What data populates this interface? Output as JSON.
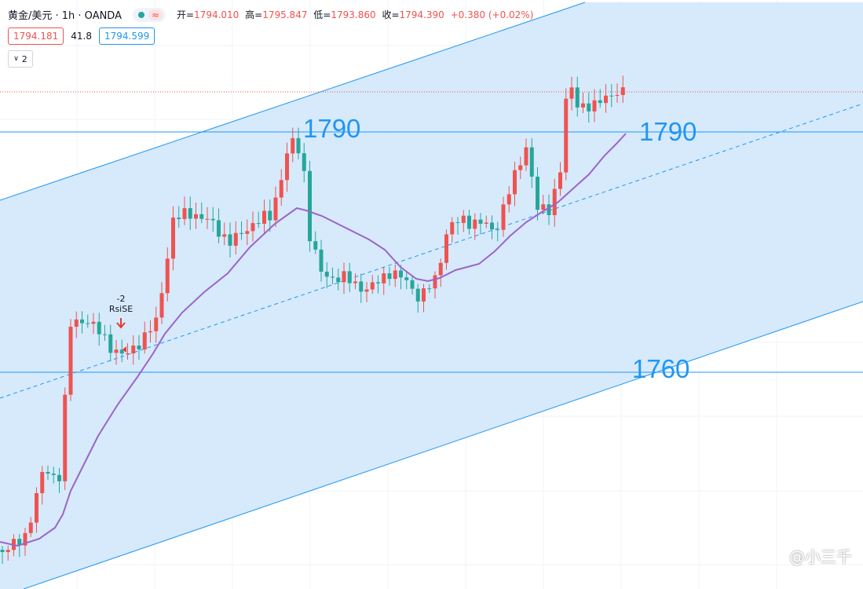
{
  "header": {
    "symbol": "黄金/美元 · 1h · OANDA",
    "status_dot_color": "#26a69a",
    "replay_glyph": "≈",
    "open_label": "开=",
    "open": "1794.010",
    "high_label": "高=",
    "high": "1795.847",
    "low_label": "低=",
    "low": "1793.860",
    "close_label": "收=",
    "close": "1794.390",
    "change": "+0.380 (+0.02%)"
  },
  "quote": {
    "sell": "1794.181",
    "spread": "41.8",
    "buy": "1794.599"
  },
  "indicators_collapse": {
    "icon": "chevron-down-icon",
    "count": "2"
  },
  "levels": [
    {
      "label": "1790",
      "price": 1790
    },
    {
      "label": "1790",
      "price": 1790
    },
    {
      "label": "1760",
      "price": 1760
    }
  ],
  "signal": {
    "line1": "-2",
    "line2": "RsiSE"
  },
  "watermark": "@小三千",
  "colors": {
    "up": "#ef5350",
    "down": "#26a69a",
    "channel": "#2196f3",
    "ma": "#9c64c8"
  }
}
